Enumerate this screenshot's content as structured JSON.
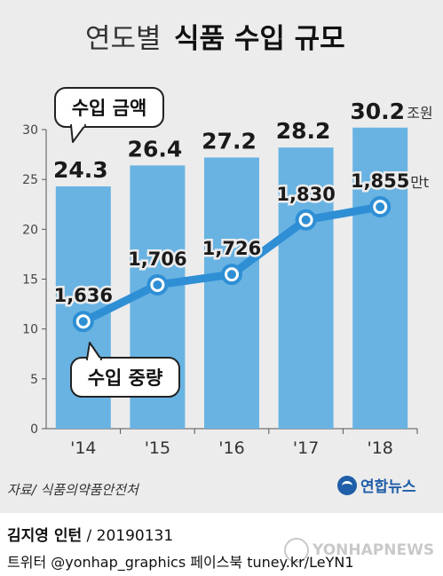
{
  "title": {
    "regular": "연도별",
    "bold": "식품 수입 규모"
  },
  "chart_data": {
    "type": "bar",
    "categories": [
      "'14",
      "'15",
      "'16",
      "'17",
      "'18"
    ],
    "ylim": [
      0,
      30
    ],
    "yticks": [
      0,
      5,
      10,
      15,
      20,
      25,
      30
    ],
    "grid": false,
    "bar_color": "#69b3e3",
    "line_color": "#2f8fd5",
    "series": [
      {
        "name": "수입 금액",
        "type": "bar",
        "values": [
          24.3,
          26.4,
          27.2,
          28.2,
          30.2
        ],
        "labels": [
          "24.3",
          "26.4",
          "27.2",
          "28.2",
          "30.2"
        ],
        "unit": "조원"
      },
      {
        "name": "수입 중량",
        "type": "line",
        "values": [
          1636,
          1706,
          1726,
          1830,
          1855
        ],
        "labels": [
          "1,636",
          "1,706",
          "1,726",
          "1,830",
          "1,855"
        ],
        "unit": "만t"
      }
    ]
  },
  "source": "자료/ 식품의약품안전처",
  "logo": "연합뉴스",
  "credit": {
    "author": "김지영 인턴",
    "date": " / 20190131"
  },
  "social": "트위터 @yonhap_graphics  페이스북 tuney.kr/LeYN1",
  "watermark": "YONHAPNEWS"
}
